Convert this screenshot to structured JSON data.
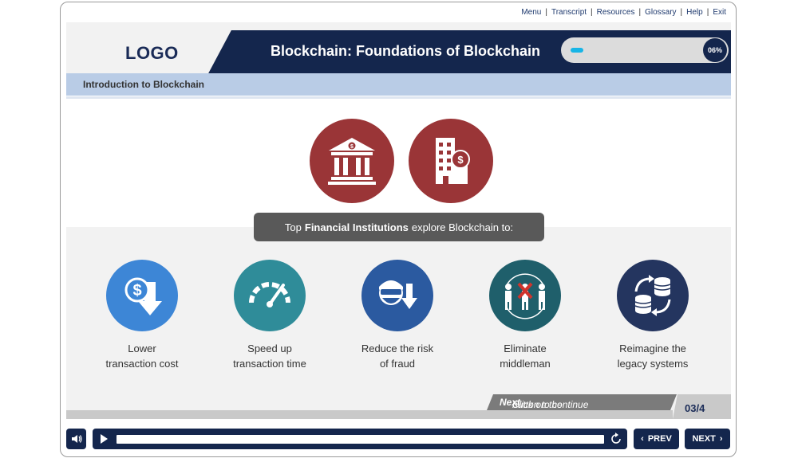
{
  "top_links": [
    "Menu",
    "Transcript",
    "Resources",
    "Glossary",
    "Help",
    "Exit"
  ],
  "header": {
    "logo": "LOGO",
    "title": "Blockchain: Foundations of Blockchain",
    "progress_label": "06%",
    "progress_value": 0.06
  },
  "subtitle": "Introduction to Blockchain",
  "top_icons": [
    {
      "name": "bank-icon"
    },
    {
      "name": "office-building-dollar-icon"
    }
  ],
  "callout": {
    "prefix": "Top",
    "bold": "Financial Institutions",
    "suffix": "explore Blockchain to:"
  },
  "items": [
    {
      "line1": "Lower",
      "line2": "transaction cost",
      "icon": "dollar-down-icon",
      "color": "#3d86d6"
    },
    {
      "line1": "Speed up",
      "line2": "transaction time",
      "icon": "speedometer-icon",
      "color": "#2f8c99"
    },
    {
      "line1": "Reduce the risk",
      "line2": "of fraud",
      "icon": "thief-down-icon",
      "color": "#2b5aa0"
    },
    {
      "line1": "Eliminate",
      "line2": "middleman",
      "icon": "remove-middleman-icon",
      "color": "#1f5f6b"
    },
    {
      "line1": "Reimagine the",
      "line2": "legacy systems",
      "icon": "database-sync-icon",
      "color": "#24355f"
    }
  ],
  "footer": {
    "continue_prefix": "Click on the",
    "continue_bold": "Next",
    "continue_suffix": "button to continue",
    "page_indicator": "03/4"
  },
  "player": {
    "prev_label": "PREV",
    "next_label": "NEXT"
  },
  "colors": {
    "navy": "#14264d",
    "maroon": "#9a3537",
    "progress": "#18b5e6",
    "subtitle_bar": "#b9cce6"
  }
}
